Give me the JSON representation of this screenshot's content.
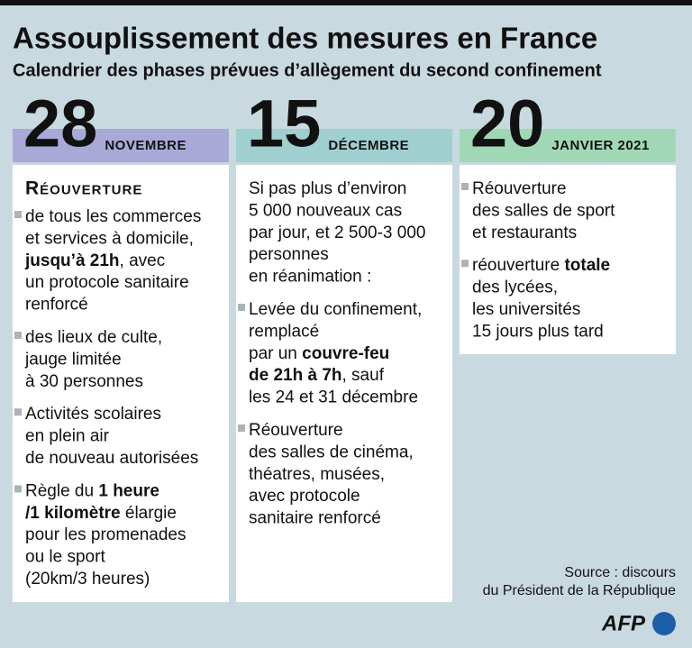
{
  "header": {
    "title": "Assouplissement des mesures en France",
    "subtitle": "Calendrier des phases prévues d’allègement du second confinement"
  },
  "columns": [
    {
      "day": "28",
      "month": "NOVEMBRE",
      "heading": "Réouverture",
      "intro": null,
      "items": [
        {
          "lines": [
            [
              "de tous les commerces"
            ],
            [
              "et services à domicile,"
            ],
            [
              {
                "text": "jusqu’à 21h",
                "bold": true
              },
              ", avec"
            ],
            [
              "un protocole sanitaire"
            ],
            [
              "renforcé"
            ]
          ]
        },
        {
          "lines": [
            [
              "des lieux de culte,"
            ],
            [
              "jauge limitée"
            ],
            [
              "à 30 personnes"
            ]
          ]
        },
        {
          "lines": [
            [
              "Activités scolaires"
            ],
            [
              "en plein air"
            ],
            [
              "de nouveau autorisées"
            ]
          ]
        },
        {
          "lines": [
            [
              "Règle du ",
              {
                "text": "1 heure",
                "bold": true
              }
            ],
            [
              {
                "text": "/1 kilomètre",
                "bold": true
              },
              " élargie"
            ],
            [
              "pour les promenades"
            ],
            [
              "ou le sport"
            ],
            [
              "(20km/3 heures)"
            ]
          ]
        }
      ]
    },
    {
      "day": "15",
      "month": "DÉCEMBRE",
      "heading": null,
      "intro": [
        "Si pas plus d’environ",
        "5 000 nouveaux cas",
        "par jour, et 2 500-3 000",
        "personnes",
        "en réanimation :"
      ],
      "items": [
        {
          "lines": [
            [
              "Levée du confinement,"
            ],
            [
              "remplacé"
            ],
            [
              "par un ",
              {
                "text": "couvre-feu",
                "bold": true
              }
            ],
            [
              {
                "text": "de 21h à 7h",
                "bold": true
              },
              ", sauf"
            ],
            [
              "les 24 et 31 décembre"
            ]
          ]
        },
        {
          "lines": [
            [
              "Réouverture"
            ],
            [
              "des salles de cinéma,"
            ],
            [
              "théatres, musées,"
            ],
            [
              "avec protocole"
            ],
            [
              "sanitaire renforcé"
            ]
          ]
        }
      ]
    },
    {
      "day": "20",
      "month": "JANVIER 2021",
      "heading": null,
      "intro": null,
      "items": [
        {
          "lines": [
            [
              "Réouverture"
            ],
            [
              "des salles de sport"
            ],
            [
              "et restaurants"
            ]
          ]
        },
        {
          "lines": [
            [
              "réouverture ",
              {
                "text": "totale",
                "bold": true
              }
            ],
            [
              "des lycées,"
            ],
            [
              "les universités"
            ],
            [
              "15 jours plus tard"
            ]
          ]
        }
      ]
    }
  ],
  "source": [
    "Source : discours",
    "du Président de la République"
  ],
  "logo": "AFP"
}
